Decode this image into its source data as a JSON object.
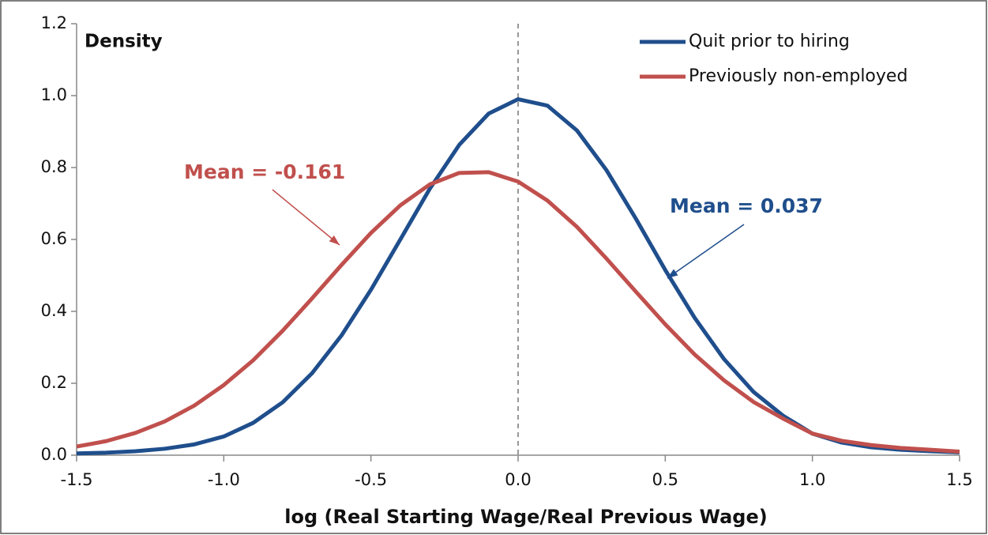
{
  "chart_data": {
    "type": "line",
    "y_label": "Density",
    "x_label": "log (Real Starting Wage/Real Previous Wage)",
    "x": [
      -1.5,
      -1.4,
      -1.3,
      -1.2,
      -1.1,
      -1.0,
      -0.9,
      -0.8,
      -0.7,
      -0.6,
      -0.5,
      -0.4,
      -0.3,
      -0.2,
      -0.1,
      0.0,
      0.1,
      0.2,
      0.3,
      0.4,
      0.5,
      0.6,
      0.7,
      0.8,
      0.9,
      1.0,
      1.1,
      1.2,
      1.3,
      1.4,
      1.5
    ],
    "series": [
      {
        "name": "Quit prior to hiring",
        "color": "#1f4e8c",
        "values": [
          0.005,
          0.007,
          0.011,
          0.018,
          0.03,
          0.052,
          0.09,
          0.147,
          0.228,
          0.333,
          0.46,
          0.6,
          0.741,
          0.863,
          0.95,
          0.99,
          0.972,
          0.903,
          0.793,
          0.658,
          0.515,
          0.382,
          0.267,
          0.176,
          0.11,
          0.06,
          0.035,
          0.022,
          0.015,
          0.011,
          0.008
        ]
      },
      {
        "name": "Previously non-employed",
        "color": "#c0504d",
        "values": [
          0.024,
          0.039,
          0.062,
          0.094,
          0.138,
          0.195,
          0.264,
          0.346,
          0.436,
          0.529,
          0.618,
          0.695,
          0.753,
          0.785,
          0.787,
          0.761,
          0.708,
          0.635,
          0.547,
          0.455,
          0.364,
          0.28,
          0.208,
          0.148,
          0.102,
          0.06,
          0.04,
          0.028,
          0.02,
          0.015,
          0.01
        ]
      }
    ],
    "annotations": [
      {
        "text": "Mean = -0.161",
        "color": "#c0504d"
      },
      {
        "text": "Mean = 0.037",
        "color": "#1f4e8c"
      }
    ],
    "vline": 0,
    "xlim": [
      -1.5,
      1.5
    ],
    "xticks": [
      -1.5,
      {
        "value": -1,
        "label": "-1.0"
      },
      -0.5,
      {
        "value": 0,
        "label": "0.0"
      },
      0.5,
      {
        "value": 1,
        "label": "1.0"
      },
      1.5
    ],
    "ylim": [
      0,
      1.2
    ],
    "yticks": [
      {
        "value": 0,
        "label": "0.0"
      },
      0.2,
      0.4,
      0.6,
      0.8,
      {
        "value": 1,
        "label": "1.0"
      },
      1.2
    ],
    "legend": "top-right"
  }
}
